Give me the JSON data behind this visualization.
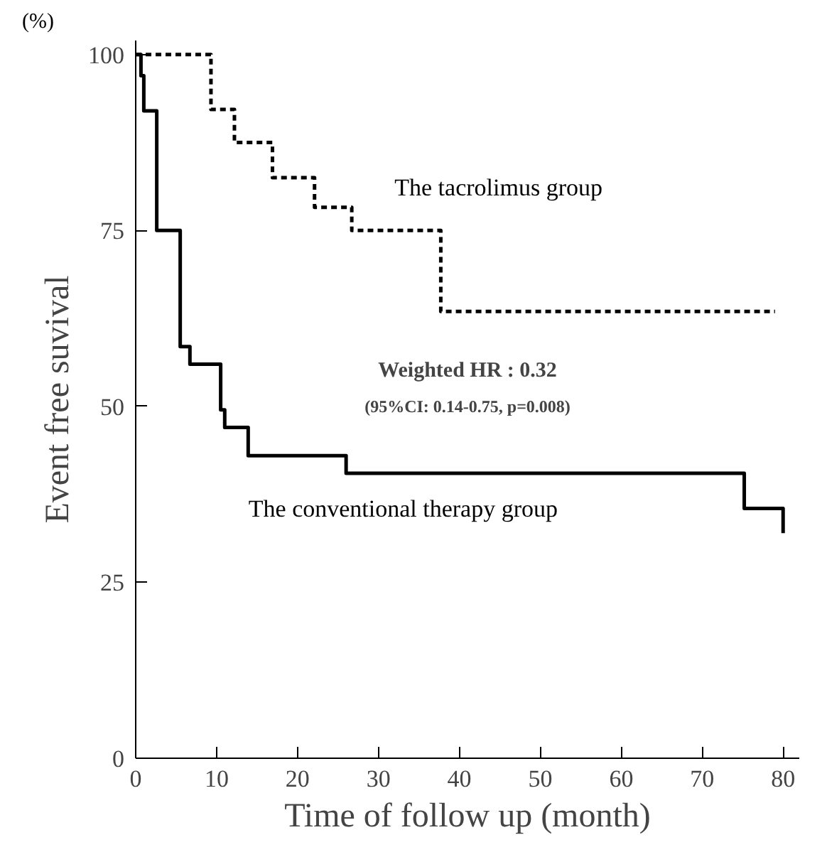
{
  "chart_data": {
    "type": "step",
    "xlabel": "Time of follow up (month)",
    "ylabel": "Event free suvival",
    "annotations": [
      "(%)",
      "Weighted HR : 0.32",
      "(95%CI: 0.14-0.75, p=0.008)"
    ],
    "series": [
      {
        "name": "The tacrolimus group",
        "color": "#000000",
        "line_style": "dashed",
        "x": [
          0,
          9.3,
          12.2,
          16.9,
          22.1,
          26.7,
          37.7,
          79
        ],
        "values": [
          100,
          92.2,
          87.5,
          82.5,
          78.3,
          75,
          63.5,
          63.5
        ]
      },
      {
        "name": "The conventional therapy group",
        "color": "#000000",
        "line_style": "solid",
        "x": [
          0,
          0.65,
          1,
          2.6,
          5.5,
          6.7,
          10.5,
          11,
          13.9,
          26,
          75.2,
          80
        ],
        "values": [
          100,
          97,
          92,
          75,
          58.5,
          56,
          49.5,
          47,
          43,
          40.5,
          35.5,
          32
        ]
      }
    ],
    "xlim": [
      0,
      82
    ],
    "ylim": [
      0,
      102
    ],
    "xticks": [
      0,
      10,
      20,
      30,
      40,
      50,
      60,
      70,
      80
    ],
    "yticks": [
      0,
      25,
      50,
      75,
      100
    ],
    "grid": false
  }
}
